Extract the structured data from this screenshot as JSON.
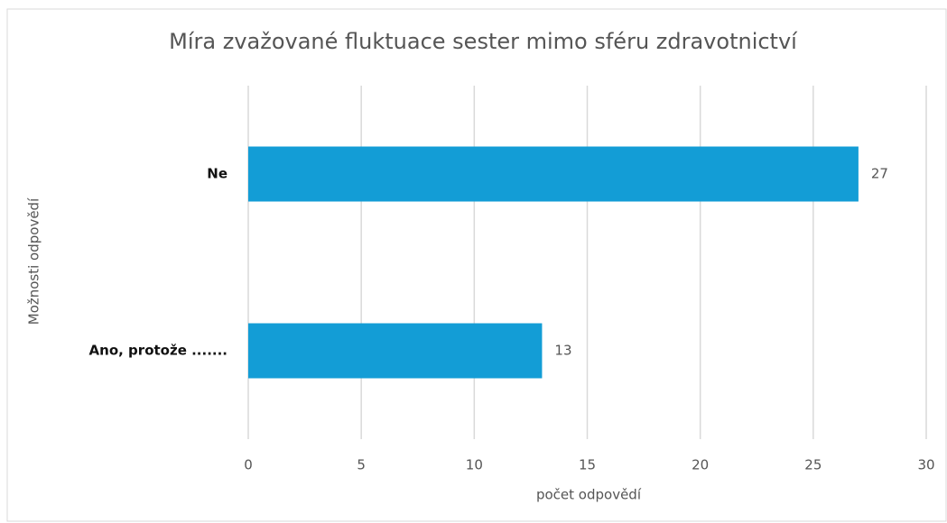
{
  "chart_data": {
    "type": "bar",
    "orientation": "horizontal",
    "title": "Míra zvažované fluktuace sester mimo sféru zdravotnictví",
    "xlabel": "počet odpovědí",
    "ylabel": "Možnosti odpovědí",
    "categories": [
      "Ne",
      "Ano, protože ......."
    ],
    "values": [
      27,
      13
    ],
    "color": "#139dd6",
    "xlim": [
      0,
      30
    ],
    "xticks": [
      0,
      5,
      10,
      15,
      20,
      25,
      30
    ],
    "grid": true
  }
}
